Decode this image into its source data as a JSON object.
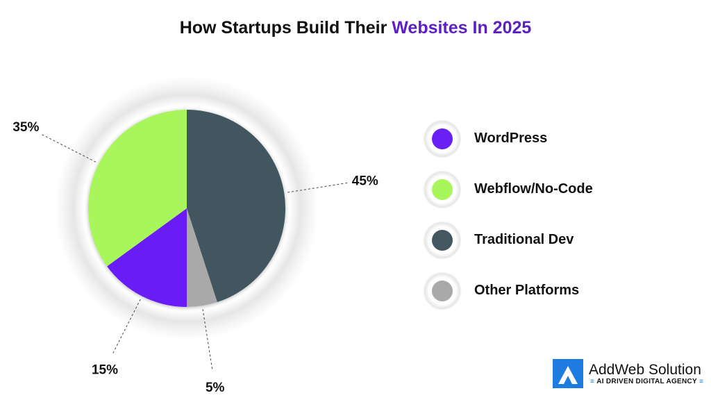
{
  "chart_data": {
    "type": "pie",
    "title_part1": "How Startups Build Their",
    "title_part2": "Websites In 2025",
    "slices": [
      {
        "name": "Traditional Dev",
        "value": 45,
        "label": "45%",
        "color": "#435761"
      },
      {
        "name": "Other Platforms",
        "value": 5,
        "label": "5%",
        "color": "#a9a9a9"
      },
      {
        "name": "WordPress",
        "value": 15,
        "label": "15%",
        "color": "#6a1ff7"
      },
      {
        "name": "Webflow/No-Code",
        "value": 35,
        "label": "35%",
        "color": "#a9f55c"
      }
    ],
    "legend_order": [
      "WordPress",
      "Webflow/No-Code",
      "Traditional Dev",
      "Other Platforms"
    ],
    "legend_placement": "right"
  },
  "brand": {
    "name": "AddWeb Solution",
    "tagline": "AI DRIVEN DIGITAL AGENCY",
    "color": "#1e7be0"
  }
}
